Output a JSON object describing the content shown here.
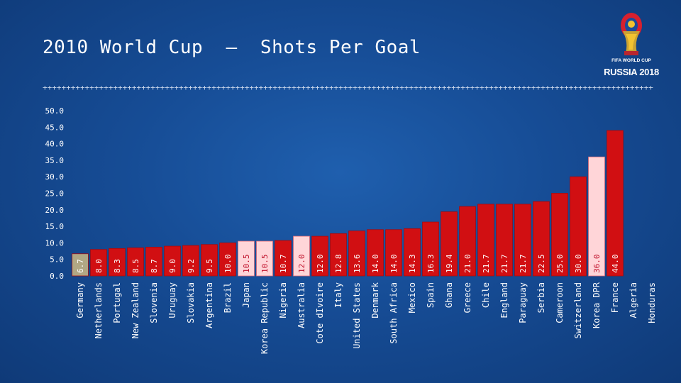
{
  "title": "2010 World Cup  –  Shots Per Goal",
  "logo": {
    "line1": "FIFA WORLD CUP",
    "line2": "RUSSIA 2018"
  },
  "colors": {
    "bar_default": "#d10f12",
    "bar_highlight": "#ffd5d8",
    "bar_first": "#b1a784",
    "bar_label_dark": "#ffffff",
    "bar_label_light": "#c0102a",
    "axis_text": "#ffffff"
  },
  "chart_data": {
    "type": "bar",
    "title": "2010 World Cup – Shots Per Goal",
    "xlabel": "",
    "ylabel": "",
    "ylim": [
      0,
      50
    ],
    "yticks": [
      "0.0",
      "5.0",
      "10.0",
      "15.0",
      "20.0",
      "25.0",
      "30.0",
      "35.0",
      "40.0",
      "45.0",
      "50.0"
    ],
    "grid": false,
    "legend": "none",
    "categories": [
      "Germany",
      "Netherlands",
      "Portugal",
      "New Zealand",
      "Slovenia",
      "Uruguay",
      "Slovakia",
      "Argentina",
      "Brazil",
      "Japan",
      "Korea Republic",
      "Nigeria",
      "Australia",
      "Cote dIvoire",
      "Italy",
      "United States",
      "Denmark",
      "South Africa",
      "Mexico",
      "Spain",
      "Ghana",
      "Greece",
      "Chile",
      "England",
      "Paraguay",
      "Serbia",
      "Cameroon",
      "Switzerland",
      "Korea DPR",
      "France",
      "Algeria",
      "Honduras"
    ],
    "values": [
      6.7,
      8.0,
      8.3,
      8.5,
      8.7,
      9.0,
      9.2,
      9.5,
      10.0,
      10.5,
      10.5,
      10.7,
      12.0,
      12.0,
      12.8,
      13.6,
      14.0,
      14.0,
      14.3,
      16.3,
      19.4,
      21.0,
      21.7,
      21.7,
      21.7,
      22.5,
      25.0,
      30.0,
      36.0,
      44.0,
      null,
      null
    ],
    "data_labels": [
      "6.7",
      "8.0",
      "8.3",
      "8.5",
      "8.7",
      "9.0",
      "9.2",
      "9.5",
      "10.0",
      "10.5",
      "10.5",
      "10.7",
      "12.0",
      "12.0",
      "12.8",
      "13.6",
      "14.0",
      "14.0",
      "14.3",
      "16.3",
      "19.4",
      "21.0",
      "21.7",
      "21.7",
      "21.7",
      "22.5",
      "25.0",
      "30.0",
      "36.0",
      "44.0",
      "",
      ""
    ],
    "bar_style": [
      "first",
      "default",
      "default",
      "default",
      "default",
      "default",
      "default",
      "default",
      "default",
      "highlight",
      "highlight",
      "default",
      "highlight",
      "default",
      "default",
      "default",
      "default",
      "default",
      "default",
      "default",
      "default",
      "default",
      "default",
      "default",
      "default",
      "default",
      "default",
      "default",
      "highlight",
      "default",
      "none",
      "none"
    ]
  }
}
